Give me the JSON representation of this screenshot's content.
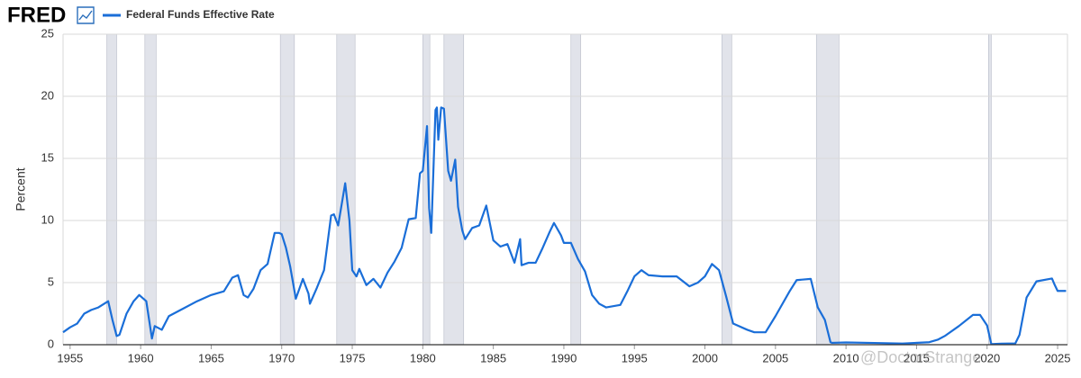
{
  "brand": "FRED",
  "watermark": "@DoctorStrange",
  "chart_data": {
    "type": "line",
    "ylabel": "Percent",
    "xlim": [
      1954.5,
      2025.7
    ],
    "ylim": [
      0,
      25
    ],
    "yticks": [
      0,
      5,
      10,
      15,
      20,
      25
    ],
    "xticks": [
      1955,
      1960,
      1965,
      1970,
      1975,
      1980,
      1985,
      1990,
      1995,
      2000,
      2005,
      2010,
      2015,
      2020,
      2025
    ],
    "grid": true,
    "recessions": [
      [
        1957.6,
        1958.3
      ],
      [
        1960.3,
        1961.1
      ],
      [
        1969.9,
        1970.9
      ],
      [
        1973.9,
        1975.2
      ],
      [
        1980.0,
        1980.5
      ],
      [
        1981.5,
        1982.9
      ],
      [
        1990.5,
        1991.2
      ],
      [
        2001.2,
        2001.9
      ],
      [
        2007.9,
        2009.5
      ],
      [
        2020.1,
        2020.3
      ]
    ],
    "recession_color": "#e1e3ea",
    "x": [
      1954.5,
      1955,
      1955.5,
      1956,
      1956.5,
      1957,
      1957.7,
      1958,
      1958.3,
      1958.5,
      1959,
      1959.5,
      1959.9,
      1960.4,
      1960.6,
      1960.8,
      1961,
      1961.5,
      1962,
      1963,
      1964,
      1965,
      1965.9,
      1966.5,
      1966.9,
      1967.3,
      1967.6,
      1968,
      1968.5,
      1969,
      1969.5,
      1969.8,
      1970,
      1970.3,
      1970.6,
      1971,
      1971.5,
      1971.9,
      1972,
      1972.5,
      1973,
      1973.5,
      1973.7,
      1974,
      1974.5,
      1974.8,
      1975,
      1975.3,
      1975.5,
      1976,
      1976.5,
      1977,
      1977.5,
      1978,
      1978.5,
      1979,
      1979.5,
      1979.8,
      1980,
      1980.3,
      1980.45,
      1980.6,
      1980.9,
      1981,
      1981.1,
      1981.3,
      1981.5,
      1981.8,
      1982,
      1982.3,
      1982.5,
      1982.8,
      1983,
      1983.5,
      1984,
      1984.5,
      1985,
      1985.5,
      1986,
      1986.5,
      1986.9,
      1987,
      1987.5,
      1988,
      1988.5,
      1989,
      1989.3,
      1989.8,
      1990,
      1990.5,
      1991,
      1991.5,
      1992,
      1992.5,
      1993,
      1994,
      1994.5,
      1995,
      1995.5,
      1996,
      1997,
      1998,
      1998.9,
      1999.5,
      2000,
      2000.5,
      2001,
      2001.5,
      2002,
      2003,
      2003.5,
      2004.3,
      2005,
      2006,
      2006.5,
      2007.5,
      2008,
      2008.5,
      2008.9,
      2009,
      2010,
      2012,
      2014,
      2015.9,
      2016.5,
      2017,
      2018,
      2019,
      2019.5,
      2020,
      2020.3,
      2021,
      2022,
      2022.3,
      2022.8,
      2023.5,
      2024.6,
      2024.8,
      2025,
      2025.6
    ],
    "series": [
      {
        "name": "Federal Funds Effective Rate",
        "color": "#1a6ed8",
        "values": [
          1.0,
          1.4,
          1.7,
          2.5,
          2.8,
          3.0,
          3.5,
          2.0,
          0.7,
          0.8,
          2.5,
          3.5,
          4.0,
          3.5,
          2.0,
          0.5,
          1.5,
          1.2,
          2.3,
          2.9,
          3.5,
          4.0,
          4.3,
          5.4,
          5.6,
          4.0,
          3.8,
          4.5,
          6.0,
          6.5,
          9.0,
          9.0,
          8.9,
          7.8,
          6.3,
          3.7,
          5.3,
          4.1,
          3.3,
          4.6,
          6.0,
          10.4,
          10.5,
          9.6,
          13.0,
          10.0,
          6.0,
          5.5,
          6.1,
          4.8,
          5.3,
          4.6,
          5.8,
          6.7,
          7.8,
          10.1,
          10.2,
          13.8,
          14.0,
          17.6,
          11.0,
          9.0,
          18.9,
          19.1,
          16.5,
          19.1,
          19.0,
          14.0,
          13.2,
          14.9,
          11.1,
          9.2,
          8.5,
          9.4,
          9.6,
          11.2,
          8.4,
          7.9,
          8.1,
          6.6,
          8.5,
          6.4,
          6.6,
          6.6,
          7.8,
          9.1,
          9.8,
          8.8,
          8.2,
          8.2,
          6.9,
          5.9,
          4.0,
          3.3,
          3.0,
          3.2,
          4.3,
          5.5,
          6.0,
          5.6,
          5.5,
          5.5,
          4.7,
          5.0,
          5.5,
          6.5,
          6.0,
          3.9,
          1.7,
          1.2,
          1.0,
          1.0,
          2.3,
          4.3,
          5.2,
          5.3,
          3.0,
          2.0,
          0.2,
          0.15,
          0.18,
          0.14,
          0.09,
          0.2,
          0.4,
          0.7,
          1.5,
          2.4,
          2.4,
          1.55,
          0.05,
          0.08,
          0.1,
          0.8,
          3.8,
          5.1,
          5.33,
          4.8,
          4.33,
          4.33
        ]
      }
    ]
  }
}
